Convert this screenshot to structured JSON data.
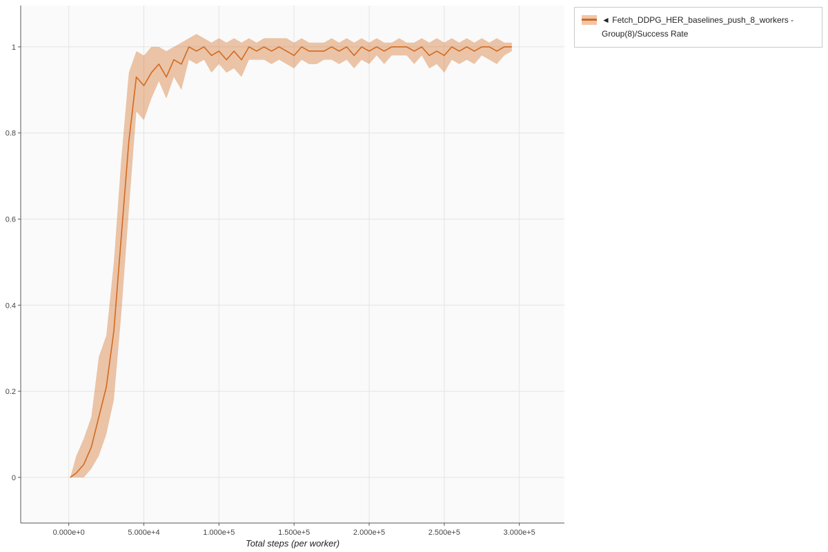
{
  "legend": {
    "collapse_icon": "◄",
    "label": "Fetch_DDPG_HER_baselines_push_8_workers - Group(8)/Success Rate"
  },
  "chart_data": {
    "type": "line",
    "title": "",
    "xlabel": "Total steps (per worker)",
    "ylabel": "",
    "xlim": [
      -32000,
      330000
    ],
    "ylim": [
      -0.106,
      1.096
    ],
    "grid": true,
    "legend_position": "outside-top-right",
    "line_color": "#d2691e",
    "band_opacity": 0.38,
    "grid_color": "#e4e4e4",
    "plot_bg": "#fafafa",
    "axis_color": "#555555",
    "x_ticks": {
      "values": [
        0,
        50000,
        100000,
        150000,
        200000,
        250000,
        300000
      ],
      "labels": [
        "0.000e+0",
        "5.000e+4",
        "1.000e+5",
        "1.500e+5",
        "2.000e+5",
        "2.500e+5",
        "3.000e+5"
      ]
    },
    "y_ticks": {
      "values": [
        0,
        0.2,
        0.4,
        0.6,
        0.8,
        1
      ],
      "labels": [
        "0",
        "0.2",
        "0.4",
        "0.6",
        "0.8",
        "1"
      ]
    },
    "series": [
      {
        "name": "Fetch_DDPG_HER_baselines_push_8_workers - Group(8)/Success Rate",
        "x": [
          1000,
          5000,
          10000,
          15000,
          20000,
          25000,
          30000,
          35000,
          40000,
          45000,
          50000,
          55000,
          60000,
          65000,
          70000,
          75000,
          80000,
          85000,
          90000,
          95000,
          100000,
          105000,
          110000,
          115000,
          120000,
          125000,
          130000,
          135000,
          140000,
          145000,
          150000,
          155000,
          160000,
          165000,
          170000,
          175000,
          180000,
          185000,
          190000,
          195000,
          200000,
          205000,
          210000,
          215000,
          220000,
          225000,
          230000,
          235000,
          240000,
          245000,
          250000,
          255000,
          260000,
          265000,
          270000,
          275000,
          280000,
          285000,
          290000,
          295000
        ],
        "mean": [
          0.0,
          0.01,
          0.03,
          0.07,
          0.14,
          0.21,
          0.34,
          0.56,
          0.78,
          0.93,
          0.91,
          0.94,
          0.96,
          0.93,
          0.97,
          0.96,
          1.0,
          0.99,
          1.0,
          0.98,
          0.99,
          0.97,
          0.99,
          0.97,
          1.0,
          0.99,
          1.0,
          0.99,
          1.0,
          0.99,
          0.98,
          1.0,
          0.99,
          0.99,
          0.99,
          1.0,
          0.99,
          1.0,
          0.98,
          1.0,
          0.99,
          1.0,
          0.99,
          1.0,
          1.0,
          1.0,
          0.99,
          1.0,
          0.98,
          0.99,
          0.98,
          1.0,
          0.99,
          1.0,
          0.99,
          1.0,
          1.0,
          0.99,
          1.0,
          1.0
        ],
        "low": [
          0.0,
          0.0,
          0.0,
          0.02,
          0.05,
          0.1,
          0.18,
          0.38,
          0.62,
          0.85,
          0.83,
          0.88,
          0.92,
          0.88,
          0.93,
          0.9,
          0.97,
          0.96,
          0.97,
          0.94,
          0.96,
          0.94,
          0.95,
          0.93,
          0.97,
          0.97,
          0.97,
          0.96,
          0.97,
          0.96,
          0.95,
          0.97,
          0.96,
          0.96,
          0.97,
          0.97,
          0.96,
          0.97,
          0.95,
          0.97,
          0.96,
          0.98,
          0.96,
          0.98,
          0.98,
          0.98,
          0.96,
          0.98,
          0.95,
          0.96,
          0.94,
          0.97,
          0.96,
          0.97,
          0.96,
          0.98,
          0.97,
          0.96,
          0.98,
          0.99
        ],
        "high": [
          0.0,
          0.05,
          0.09,
          0.14,
          0.28,
          0.33,
          0.5,
          0.74,
          0.94,
          0.99,
          0.98,
          1.0,
          1.0,
          0.99,
          1.0,
          1.01,
          1.02,
          1.03,
          1.02,
          1.01,
          1.02,
          1.01,
          1.02,
          1.01,
          1.02,
          1.01,
          1.02,
          1.02,
          1.02,
          1.02,
          1.01,
          1.02,
          1.01,
          1.01,
          1.01,
          1.02,
          1.01,
          1.02,
          1.01,
          1.02,
          1.01,
          1.02,
          1.01,
          1.01,
          1.02,
          1.01,
          1.01,
          1.02,
          1.01,
          1.02,
          1.01,
          1.02,
          1.01,
          1.02,
          1.01,
          1.02,
          1.01,
          1.02,
          1.01,
          1.01
        ]
      }
    ]
  }
}
